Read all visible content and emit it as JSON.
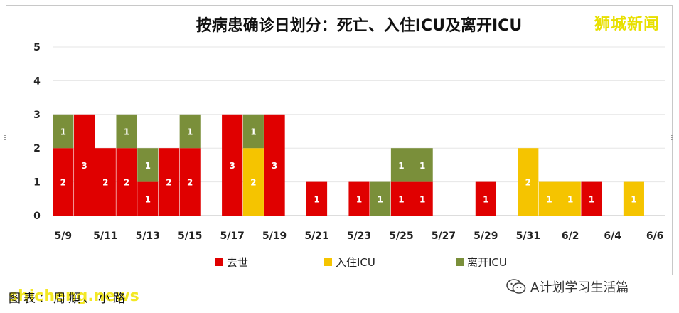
{
  "brand": "狮城新闻",
  "credit": "图表：周頫、小路",
  "site": "shicheng.news",
  "wechat": {
    "icon": "wechat-icon",
    "label": "A计划学习生活篇"
  },
  "colors": {
    "deceased": "#e00000",
    "icu_in": "#f5c400",
    "icu_out": "#7a8f3a"
  },
  "chart_data": {
    "type": "bar",
    "stacked": true,
    "title": "按病患确诊日划分：死亡、入住ICU及离开ICU",
    "xlabel": "",
    "ylabel": "",
    "ylim": [
      0,
      5
    ],
    "yticks": [
      "0",
      "1",
      "2",
      "3",
      "4",
      "5"
    ],
    "grid": true,
    "legend_position": "bottom",
    "categories": [
      "5/9",
      "5/10",
      "5/11",
      "5/12",
      "5/13",
      "5/14",
      "5/15",
      "5/16",
      "5/17",
      "5/18",
      "5/19",
      "5/20",
      "5/21",
      "5/22",
      "5/23",
      "5/24",
      "5/25",
      "5/26",
      "5/27",
      "5/28",
      "5/29",
      "5/30",
      "5/31",
      "6/1",
      "6/2",
      "6/3",
      "6/4",
      "6/5",
      "6/6"
    ],
    "xtick_labels": [
      "5/9",
      "5/11",
      "5/13",
      "5/15",
      "5/17",
      "5/19",
      "5/21",
      "5/23",
      "5/25",
      "5/27",
      "5/29",
      "5/31",
      "6/2",
      "6/4",
      "6/6"
    ],
    "series": [
      {
        "name": "去世",
        "color": "#e00000",
        "values": [
          2,
          3,
          2,
          2,
          1,
          2,
          2,
          0,
          3,
          0,
          3,
          0,
          1,
          0,
          1,
          0,
          1,
          1,
          0,
          0,
          1,
          0,
          0,
          0,
          0,
          1,
          0,
          0,
          0
        ]
      },
      {
        "name": "入住ICU",
        "color": "#f5c400",
        "values": [
          0,
          0,
          0,
          0,
          0,
          0,
          0,
          0,
          0,
          2,
          0,
          0,
          0,
          0,
          0,
          0,
          0,
          0,
          0,
          0,
          0,
          0,
          2,
          1,
          1,
          0,
          0,
          1,
          0
        ]
      },
      {
        "name": "离开ICU",
        "color": "#7a8f3a",
        "values": [
          1,
          0,
          0,
          1,
          1,
          0,
          1,
          0,
          0,
          1,
          0,
          0,
          0,
          0,
          0,
          1,
          1,
          1,
          0,
          0,
          0,
          0,
          0,
          0,
          0,
          0,
          0,
          0,
          0
        ]
      }
    ]
  }
}
